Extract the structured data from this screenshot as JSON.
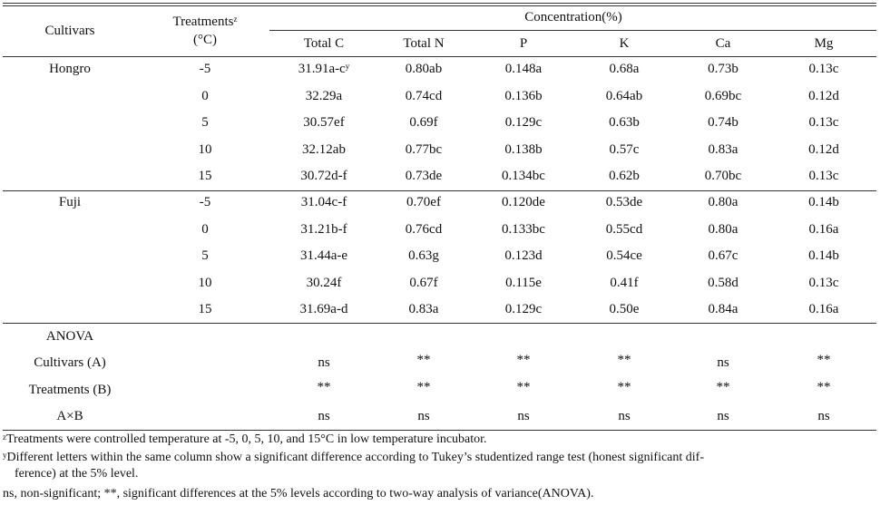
{
  "header": {
    "cultivars": "Cultivars",
    "treatments": "Treatments",
    "treatments_sup": "z",
    "treatments_unit": "(°C)",
    "concentration": "Concentration(%)",
    "columns": [
      "Total C",
      "Total N",
      "P",
      "K",
      "Ca",
      "Mg"
    ]
  },
  "groups": [
    {
      "cultivar": "Hongro",
      "rows": [
        {
          "treatment": "-5",
          "values": [
            "31.91a-c",
            "0.80ab",
            "0.148a",
            "0.68a",
            "0.73b",
            "0.13c"
          ],
          "sup": "y"
        },
        {
          "treatment": "0",
          "values": [
            "32.29a",
            "0.74cd",
            "0.136b",
            "0.64ab",
            "0.69bc",
            "0.12d"
          ]
        },
        {
          "treatment": "5",
          "values": [
            "30.57ef",
            "0.69f",
            "0.129c",
            "0.63b",
            "0.74b",
            "0.13c"
          ]
        },
        {
          "treatment": "10",
          "values": [
            "32.12ab",
            "0.77bc",
            "0.138b",
            "0.57c",
            "0.83a",
            "0.12d"
          ]
        },
        {
          "treatment": "15",
          "values": [
            "30.72d-f",
            "0.73de",
            "0.134bc",
            "0.62b",
            "0.70bc",
            "0.13c"
          ]
        }
      ]
    },
    {
      "cultivar": "Fuji",
      "rows": [
        {
          "treatment": "-5",
          "values": [
            "31.04c-f",
            "0.70ef",
            "0.120de",
            "0.53de",
            "0.80a",
            "0.14b"
          ]
        },
        {
          "treatment": "0",
          "values": [
            "31.21b-f",
            "0.76cd",
            "0.133bc",
            "0.55cd",
            "0.80a",
            "0.16a"
          ]
        },
        {
          "treatment": "5",
          "values": [
            "31.44a-e",
            "0.63g",
            "0.123d",
            "0.54ce",
            "0.67c",
            "0.14b"
          ]
        },
        {
          "treatment": "10",
          "values": [
            "30.24f",
            "0.67f",
            "0.115e",
            "0.41f",
            "0.58d",
            "0.13c"
          ]
        },
        {
          "treatment": "15",
          "values": [
            "31.69a-d",
            "0.83a",
            "0.129c",
            "0.50e",
            "0.84a",
            "0.16a"
          ]
        }
      ]
    }
  ],
  "anova": {
    "title": "ANOVA",
    "rows": [
      {
        "label": "Cultivars (A)",
        "values": [
          "ns",
          "**",
          "**",
          "**",
          "ns",
          "**"
        ]
      },
      {
        "label": "Treatments (B)",
        "values": [
          "**",
          "**",
          "**",
          "**",
          "**",
          "**"
        ]
      },
      {
        "label": "A×B",
        "values": [
          "ns",
          "ns",
          "ns",
          "ns",
          "ns",
          "ns"
        ]
      }
    ]
  },
  "footnotes": {
    "z_mark": "z",
    "z_text": "Treatments were controlled temperature at -5, 0, 5, 10, and 15°C in low temperature incubator.",
    "y_mark": "y",
    "y_text_1": "Different letters within the same column show a significant difference according to Tukey’s studentized range test (honest significant dif-",
    "y_text_2": "ference) at the 5% level.",
    "ns_text": "ns, non-significant; **, significant differences at the 5% levels according to two-way analysis of variance(ANOVA)."
  }
}
